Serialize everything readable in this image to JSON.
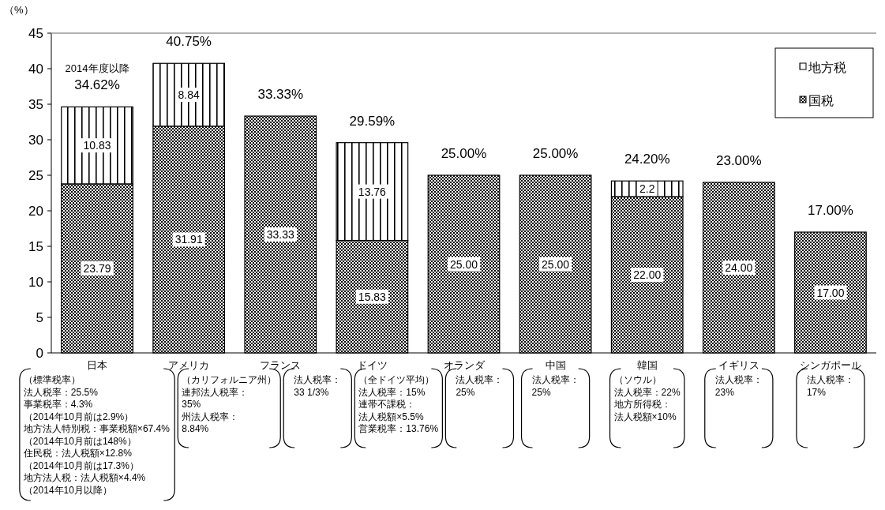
{
  "chart_data": {
    "type": "bar",
    "stacked": true,
    "ylabel": "（%）",
    "categories": [
      "日本",
      "アメリカ",
      "フランス",
      "ドイツ",
      "オランダ",
      "中国",
      "韓国",
      "イギリス",
      "シンガポール"
    ],
    "series": [
      {
        "name": "国税",
        "color": "#000000",
        "values": [
          23.79,
          31.91,
          33.33,
          15.83,
          25.0,
          25.0,
          22.0,
          24.0,
          17.0
        ],
        "value_labels": [
          "23.79",
          "31.91",
          "33.33",
          "15.83",
          "25.00",
          "25.00",
          "22.00",
          "24.00",
          "17.00"
        ]
      },
      {
        "name": "地方税",
        "color": "#000000",
        "values": [
          10.83,
          8.84,
          null,
          13.76,
          null,
          null,
          2.2,
          null,
          null
        ],
        "value_labels": [
          "10.83",
          "8.84",
          null,
          "13.76",
          null,
          null,
          "2.2",
          null,
          null
        ]
      }
    ],
    "totals": [
      "34.62%",
      "40.75%",
      "33.33%",
      "29.59%",
      "25.00%",
      "25.00%",
      "24.20%",
      null,
      "17.00%"
    ],
    "ylim": [
      0,
      45
    ],
    "yticks": [
      0,
      5,
      10,
      15,
      20,
      25,
      30,
      35,
      40,
      45
    ],
    "grid": false,
    "legend": "top right",
    "annotations": [
      "2014年度以降",
      {
        "text": "23.00%",
        "x": "イギリス",
        "y": 24
      },
      "（標準税率）法人税率：25.5%\n事業税率：4.3%\n（2014年10月前は2.9%）地方法人特別税：事業税額×67.4%\n（2014年10月前は148%）住民税：法人税額×12.8%\n（2014年10月前は17.3%）地方法人税：法人税額×4.4%\n（2014年10月以降）",
      "（カリフォルニア州）連邦法人税率：\n35%\n州法人税率：\n8.84%",
      "法人税率：\n33 1/3%",
      "（全ドイツ平均）法人税率：15%\n連帯不課税：法人税額×5.5%\n営業税率：13.76%",
      "法人税率：\n25%",
      "法人税率：\n25%",
      "（ソウル）法人税率：22%\n地方所得税：法人税額×10%",
      "法人税率：\n23%",
      "法人税率：\n17%"
    ]
  }
}
